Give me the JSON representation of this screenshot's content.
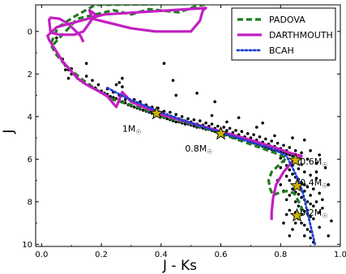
{
  "chart_data": {
    "type": "scatter",
    "xlabel": "J - Ks",
    "ylabel": "J",
    "xlim": [
      -0.02,
      1.0
    ],
    "ylim": [
      10.1,
      -1.25
    ],
    "y_inverted": true,
    "grid": false,
    "legend_position": "top-right",
    "x_ticks": [
      "0.0",
      "0.2",
      "0.4",
      "0.6",
      "0.8",
      "1.0"
    ],
    "x_tick_values": [
      0.0,
      0.2,
      0.4,
      0.6,
      0.8,
      1.0
    ],
    "y_ticks": [
      "0",
      "2",
      "4",
      "6",
      "8",
      "10"
    ],
    "y_tick_values": [
      0,
      2,
      4,
      6,
      8,
      10
    ],
    "series": [
      {
        "name": "PADOVA",
        "style": "dashed",
        "color": "#1f7a1f",
        "points": [
          [
            0.04,
            0.6
          ],
          [
            0.06,
            0.3
          ],
          [
            0.12,
            -0.6
          ],
          [
            0.24,
            -1.0
          ],
          [
            0.3,
            -0.8
          ],
          [
            0.36,
            -1.05
          ],
          [
            0.46,
            -0.9
          ],
          [
            0.52,
            -1.2
          ],
          [
            0.56,
            -1.3
          ],
          [
            0.18,
            -1.25
          ],
          [
            0.11,
            -0.7
          ],
          [
            0.055,
            -0.2
          ],
          [
            0.03,
            0.6
          ],
          [
            0.05,
            1.1
          ],
          [
            0.08,
            1.6
          ],
          [
            0.14,
            2.3
          ],
          [
            0.18,
            2.7
          ],
          [
            0.24,
            3.2
          ],
          [
            0.32,
            3.55
          ],
          [
            0.4,
            4.0
          ],
          [
            0.5,
            4.35
          ],
          [
            0.6,
            4.8
          ],
          [
            0.7,
            5.3
          ],
          [
            0.78,
            5.7
          ],
          [
            0.82,
            5.95
          ],
          [
            0.8,
            6.2
          ],
          [
            0.77,
            6.6
          ],
          [
            0.76,
            7.0
          ],
          [
            0.765,
            7.4
          ],
          [
            0.775,
            7.7
          ],
          [
            0.79,
            7.6
          ],
          [
            0.82,
            7.5
          ],
          [
            0.845,
            7.6
          ],
          [
            0.865,
            8.1
          ],
          [
            0.88,
            8.6
          ]
        ]
      },
      {
        "name": "DARTHMOUTH",
        "style": "solid",
        "color": "#c21fc2",
        "points": [
          [
            0.14,
            0.5
          ],
          [
            0.13,
            0.2
          ],
          [
            0.09,
            -0.35
          ],
          [
            0.06,
            -0.6
          ],
          [
            0.03,
            -0.65
          ],
          [
            0.025,
            -0.55
          ],
          [
            0.03,
            0.05
          ],
          [
            0.06,
            0.15
          ],
          [
            0.11,
            0.15
          ],
          [
            0.14,
            0.0
          ],
          [
            0.18,
            -0.8
          ],
          [
            0.16,
            -1.0
          ],
          [
            0.17,
            -0.6
          ],
          [
            0.3,
            -0.15
          ],
          [
            0.38,
            -0.0
          ],
          [
            0.5,
            0.0
          ],
          [
            0.53,
            -0.5
          ],
          [
            0.54,
            -1.0
          ],
          [
            0.55,
            -1.1
          ],
          [
            0.21,
            -0.8
          ],
          [
            0.05,
            -0.2
          ],
          [
            0.02,
            0.2
          ],
          [
            0.025,
            0.4
          ],
          [
            0.07,
            1.4
          ],
          [
            0.12,
            2.2
          ],
          [
            0.15,
            2.5
          ],
          [
            0.19,
            2.8
          ],
          [
            0.22,
            3.05
          ],
          [
            0.25,
            3.55
          ],
          [
            0.27,
            2.85
          ],
          [
            0.3,
            3.3
          ],
          [
            0.34,
            3.55
          ],
          [
            0.4,
            3.9
          ],
          [
            0.5,
            4.3
          ],
          [
            0.6,
            4.7
          ],
          [
            0.7,
            5.1
          ],
          [
            0.78,
            5.45
          ],
          [
            0.83,
            5.7
          ],
          [
            0.87,
            5.85
          ],
          [
            0.86,
            5.95
          ],
          [
            0.84,
            6.1
          ],
          [
            0.81,
            6.6
          ],
          [
            0.785,
            7.2
          ],
          [
            0.775,
            7.8
          ],
          [
            0.77,
            8.5
          ],
          [
            0.77,
            8.85
          ]
        ]
      },
      {
        "name": "BCAH",
        "style": "dotted",
        "color": "#1f3fcf",
        "points": [
          [
            0.22,
            2.65
          ],
          [
            0.28,
            3.1
          ],
          [
            0.34,
            3.45
          ],
          [
            0.4,
            3.8
          ],
          [
            0.5,
            4.3
          ],
          [
            0.6,
            4.75
          ],
          [
            0.7,
            5.2
          ],
          [
            0.78,
            5.55
          ],
          [
            0.82,
            5.85
          ],
          [
            0.84,
            6.4
          ],
          [
            0.86,
            7.0
          ],
          [
            0.875,
            7.6
          ],
          [
            0.885,
            8.2
          ],
          [
            0.895,
            8.8
          ],
          [
            0.905,
            9.4
          ],
          [
            0.915,
            10.0
          ]
        ]
      }
    ],
    "scatter_points": [
      [
        0.08,
        1.6
      ],
      [
        0.1,
        2.0
      ],
      [
        0.12,
        2.2
      ],
      [
        0.14,
        2.4
      ],
      [
        0.16,
        2.5
      ],
      [
        0.18,
        2.65
      ],
      [
        0.2,
        2.8
      ],
      [
        0.21,
        2.9
      ],
      [
        0.22,
        2.95
      ],
      [
        0.23,
        3.05
      ],
      [
        0.24,
        3.1
      ],
      [
        0.25,
        3.15
      ],
      [
        0.26,
        3.25
      ],
      [
        0.27,
        3.3
      ],
      [
        0.28,
        3.35
      ],
      [
        0.29,
        3.45
      ],
      [
        0.3,
        3.5
      ],
      [
        0.31,
        3.55
      ],
      [
        0.32,
        3.6
      ],
      [
        0.33,
        3.65
      ],
      [
        0.34,
        3.7
      ],
      [
        0.35,
        3.75
      ],
      [
        0.36,
        3.8
      ],
      [
        0.37,
        3.85
      ],
      [
        0.38,
        3.9
      ],
      [
        0.39,
        3.95
      ],
      [
        0.4,
        4.0
      ],
      [
        0.41,
        4.05
      ],
      [
        0.42,
        4.1
      ],
      [
        0.43,
        4.15
      ],
      [
        0.44,
        4.2
      ],
      [
        0.45,
        4.25
      ],
      [
        0.46,
        4.25
      ],
      [
        0.47,
        4.3
      ],
      [
        0.48,
        4.35
      ],
      [
        0.49,
        4.35
      ],
      [
        0.5,
        4.4
      ],
      [
        0.51,
        4.45
      ],
      [
        0.52,
        4.5
      ],
      [
        0.53,
        4.5
      ],
      [
        0.54,
        4.55
      ],
      [
        0.55,
        4.6
      ],
      [
        0.56,
        4.6
      ],
      [
        0.57,
        4.65
      ],
      [
        0.58,
        4.7
      ],
      [
        0.59,
        4.75
      ],
      [
        0.61,
        4.8
      ],
      [
        0.62,
        4.85
      ],
      [
        0.63,
        4.9
      ],
      [
        0.64,
        4.95
      ],
      [
        0.65,
        5.0
      ],
      [
        0.66,
        5.0
      ],
      [
        0.67,
        5.05
      ],
      [
        0.68,
        5.1
      ],
      [
        0.69,
        5.15
      ],
      [
        0.7,
        5.2
      ],
      [
        0.71,
        5.25
      ],
      [
        0.72,
        5.3
      ],
      [
        0.73,
        5.35
      ],
      [
        0.74,
        5.4
      ],
      [
        0.75,
        5.45
      ],
      [
        0.76,
        5.5
      ],
      [
        0.77,
        5.55
      ],
      [
        0.78,
        5.6
      ],
      [
        0.79,
        5.6
      ],
      [
        0.8,
        5.65
      ],
      [
        0.81,
        5.7
      ],
      [
        0.82,
        5.75
      ],
      [
        0.83,
        5.8
      ],
      [
        0.84,
        5.85
      ],
      [
        0.85,
        5.9
      ],
      [
        0.86,
        5.95
      ],
      [
        0.15,
        2.1
      ],
      [
        0.17,
        2.3
      ],
      [
        0.19,
        2.5
      ],
      [
        0.22,
        2.7
      ],
      [
        0.24,
        2.85
      ],
      [
        0.26,
        3.0
      ],
      [
        0.28,
        3.2
      ],
      [
        0.3,
        3.3
      ],
      [
        0.32,
        3.4
      ],
      [
        0.34,
        3.5
      ],
      [
        0.36,
        3.6
      ],
      [
        0.38,
        3.7
      ],
      [
        0.4,
        3.85
      ],
      [
        0.42,
        3.95
      ],
      [
        0.44,
        4.05
      ],
      [
        0.46,
        4.1
      ],
      [
        0.48,
        4.2
      ],
      [
        0.5,
        4.25
      ],
      [
        0.52,
        4.35
      ],
      [
        0.54,
        4.4
      ],
      [
        0.56,
        4.45
      ],
      [
        0.58,
        4.55
      ],
      [
        0.6,
        4.6
      ],
      [
        0.62,
        4.65
      ],
      [
        0.64,
        4.75
      ],
      [
        0.66,
        4.85
      ],
      [
        0.68,
        4.95
      ],
      [
        0.7,
        5.0
      ],
      [
        0.72,
        5.1
      ],
      [
        0.74,
        5.2
      ],
      [
        0.76,
        5.3
      ],
      [
        0.78,
        5.4
      ],
      [
        0.8,
        5.5
      ],
      [
        0.82,
        5.6
      ],
      [
        0.25,
        2.5
      ],
      [
        0.27,
        2.6
      ],
      [
        0.31,
        3.2
      ],
      [
        0.33,
        3.3
      ],
      [
        0.35,
        3.45
      ],
      [
        0.37,
        3.55
      ],
      [
        0.39,
        3.6
      ],
      [
        0.41,
        3.75
      ],
      [
        0.43,
        3.8
      ],
      [
        0.45,
        3.9
      ],
      [
        0.47,
        4.0
      ],
      [
        0.49,
        4.1
      ],
      [
        0.51,
        4.15
      ],
      [
        0.53,
        4.2
      ],
      [
        0.55,
        4.3
      ],
      [
        0.57,
        4.35
      ],
      [
        0.59,
        4.45
      ],
      [
        0.61,
        4.5
      ],
      [
        0.63,
        4.55
      ],
      [
        0.65,
        4.65
      ],
      [
        0.67,
        4.7
      ],
      [
        0.69,
        4.8
      ],
      [
        0.71,
        4.85
      ],
      [
        0.73,
        4.95
      ],
      [
        0.75,
        5.05
      ],
      [
        0.77,
        5.15
      ],
      [
        0.79,
        5.25
      ],
      [
        0.81,
        5.35
      ],
      [
        0.83,
        5.45
      ],
      [
        0.85,
        5.6
      ],
      [
        0.87,
        5.7
      ],
      [
        0.05,
        0.3
      ],
      [
        0.07,
        1.3
      ],
      [
        0.09,
        1.8
      ],
      [
        0.11,
        2.0
      ],
      [
        0.13,
        2.3
      ],
      [
        0.26,
        2.4
      ],
      [
        0.27,
        2.2
      ],
      [
        0.1,
        1.75
      ],
      [
        0.08,
        1.8
      ],
      [
        0.09,
        2.2
      ],
      [
        0.15,
        1.5
      ],
      [
        0.41,
        1.5
      ],
      [
        0.44,
        2.3
      ],
      [
        0.45,
        3.0
      ],
      [
        0.52,
        2.9
      ],
      [
        0.58,
        3.3
      ],
      [
        0.57,
        3.95
      ],
      [
        0.62,
        4.25
      ],
      [
        0.66,
        4.05
      ],
      [
        0.72,
        4.5
      ],
      [
        0.74,
        4.3
      ],
      [
        0.78,
        4.9
      ],
      [
        0.76,
        5.3
      ],
      [
        0.84,
        5.0
      ],
      [
        0.88,
        5.1
      ],
      [
        0.9,
        5.6
      ],
      [
        0.93,
        5.8
      ],
      [
        0.95,
        6.4
      ],
      [
        0.92,
        6.6
      ],
      [
        0.96,
        7.2
      ],
      [
        0.94,
        8.3
      ],
      [
        0.97,
        8.9
      ],
      [
        0.93,
        9.2
      ],
      [
        0.96,
        9.6
      ],
      [
        0.91,
        9.9
      ],
      [
        0.8,
        5.95
      ],
      [
        0.81,
        6.1
      ],
      [
        0.82,
        6.3
      ],
      [
        0.83,
        6.5
      ],
      [
        0.84,
        6.7
      ],
      [
        0.85,
        6.85
      ],
      [
        0.86,
        6.95
      ],
      [
        0.87,
        7.1
      ],
      [
        0.88,
        7.2
      ],
      [
        0.89,
        7.3
      ],
      [
        0.83,
        7.0
      ],
      [
        0.84,
        7.4
      ],
      [
        0.85,
        7.55
      ],
      [
        0.86,
        7.65
      ],
      [
        0.87,
        7.8
      ],
      [
        0.88,
        7.9
      ],
      [
        0.89,
        8.0
      ],
      [
        0.9,
        8.1
      ],
      [
        0.91,
        8.2
      ],
      [
        0.85,
        8.0
      ],
      [
        0.86,
        8.2
      ],
      [
        0.87,
        8.35
      ],
      [
        0.88,
        8.45
      ],
      [
        0.89,
        8.55
      ],
      [
        0.9,
        8.7
      ],
      [
        0.91,
        8.8
      ],
      [
        0.86,
        8.8
      ],
      [
        0.87,
        9.0
      ],
      [
        0.88,
        9.1
      ],
      [
        0.89,
        9.3
      ],
      [
        0.9,
        9.4
      ],
      [
        0.84,
        9.3
      ],
      [
        0.83,
        9.6
      ],
      [
        0.85,
        8.5
      ],
      [
        0.82,
        7.9
      ],
      [
        0.81,
        7.5
      ],
      [
        0.8,
        7.2
      ],
      [
        0.84,
        6.3
      ],
      [
        0.86,
        6.45
      ],
      [
        0.88,
        6.6
      ],
      [
        0.9,
        6.75
      ],
      [
        0.92,
        6.9
      ],
      [
        0.91,
        7.4
      ],
      [
        0.93,
        7.6
      ],
      [
        0.92,
        8.0
      ],
      [
        0.94,
        7.9
      ],
      [
        0.93,
        8.5
      ],
      [
        0.92,
        6.2
      ],
      [
        0.89,
        6.0
      ],
      [
        0.87,
        6.25
      ],
      [
        0.82,
        6.8
      ],
      [
        0.83,
        7.7
      ],
      [
        0.86,
        7.3
      ],
      [
        0.88,
        7.5
      ],
      [
        0.9,
        7.7
      ],
      [
        0.89,
        8.4
      ],
      [
        0.87,
        8.6
      ],
      [
        0.85,
        9.0
      ],
      [
        0.88,
        9.6
      ],
      [
        0.9,
        9.7
      ],
      [
        0.83,
        8.4
      ],
      [
        0.82,
        8.6
      ],
      [
        0.81,
        9.0
      ],
      [
        0.8,
        6.4
      ],
      [
        0.79,
        7.0
      ]
    ],
    "annotations": [
      {
        "label_main": "1M",
        "label_sub": "☉",
        "x": 0.385,
        "y": 3.85,
        "lx": 0.27,
        "ly": 4.55
      },
      {
        "label_main": "0.8M",
        "label_sub": "☉",
        "x": 0.6,
        "y": 4.8,
        "lx": 0.48,
        "ly": 5.5
      },
      {
        "label_main": "0.6M",
        "label_sub": "☉",
        "x": 0.85,
        "y": 6.05,
        "lx": 0.865,
        "ly": 6.1
      },
      {
        "label_main": "0.4M",
        "label_sub": "☉",
        "x": 0.855,
        "y": 7.25,
        "lx": 0.865,
        "ly": 7.1
      },
      {
        "label_main": "0.2M",
        "label_sub": "☉",
        "x": 0.855,
        "y": 8.65,
        "lx": 0.865,
        "ly": 8.5
      }
    ],
    "star_marker_color": "#c8b400"
  }
}
